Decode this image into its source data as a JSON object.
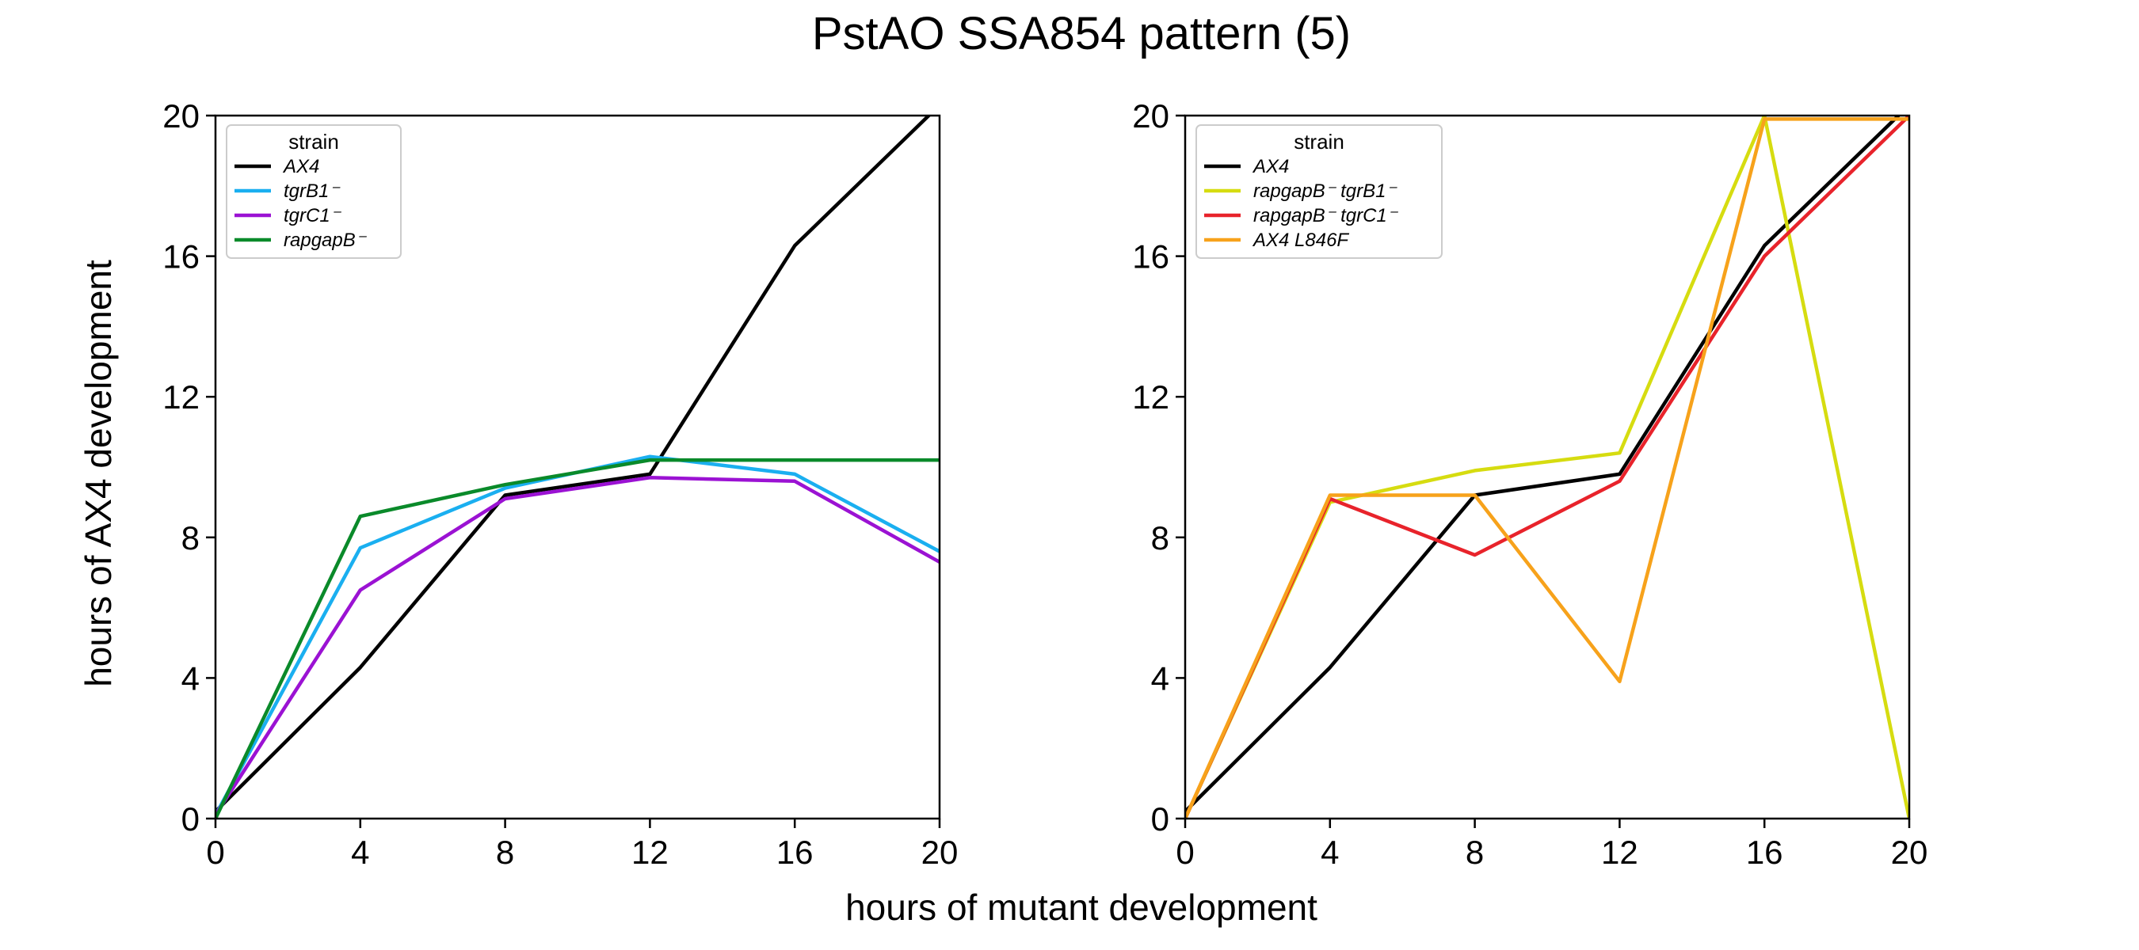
{
  "figure": {
    "title": "PstAO SSA854 pattern (5)",
    "xlabel": "hours of mutant development",
    "ylabel": "hours of AX4 development"
  },
  "chart_data": [
    {
      "type": "line",
      "xlim": [
        0,
        20
      ],
      "ylim": [
        0,
        20
      ],
      "xticks": [
        "0",
        "4",
        "8",
        "12",
        "16",
        "20"
      ],
      "yticks": [
        "0",
        "4",
        "8",
        "12",
        "16",
        "20"
      ],
      "grid": false,
      "legend": {
        "title": "strain",
        "placement": "top-left"
      },
      "series": [
        {
          "name": "AX4",
          "color": "#000000",
          "x": [
            0,
            4,
            8,
            12,
            16,
            20
          ],
          "y": [
            0.2,
            4.3,
            9.2,
            9.8,
            16.3,
            20.3
          ]
        },
        {
          "name": "tgrB1⁻",
          "color": "#1aaff0",
          "x": [
            0,
            4,
            8,
            12,
            16,
            20
          ],
          "y": [
            0.1,
            7.7,
            9.4,
            10.3,
            9.8,
            7.6
          ]
        },
        {
          "name": "tgrC1⁻",
          "color": "#9b12d3",
          "x": [
            0,
            4,
            8,
            12,
            16,
            20
          ],
          "y": [
            0.1,
            6.5,
            9.1,
            9.7,
            9.6,
            7.3
          ]
        },
        {
          "name": "rapgapB⁻",
          "color": "#0a8a2a",
          "x": [
            0,
            4,
            8,
            12,
            16,
            20
          ],
          "y": [
            0.0,
            8.6,
            9.5,
            10.2,
            10.2,
            10.2
          ]
        }
      ]
    },
    {
      "type": "line",
      "xlim": [
        0,
        20
      ],
      "ylim": [
        0,
        20
      ],
      "xticks": [
        "0",
        "4",
        "8",
        "12",
        "16",
        "20"
      ],
      "yticks": [
        "0",
        "4",
        "8",
        "12",
        "16",
        "20"
      ],
      "grid": false,
      "legend": {
        "title": "strain",
        "placement": "top-left"
      },
      "series": [
        {
          "name": "AX4",
          "color": "#000000",
          "x": [
            0,
            4,
            8,
            12,
            16,
            20
          ],
          "y": [
            0.2,
            4.3,
            9.2,
            9.8,
            16.3,
            20.3
          ]
        },
        {
          "name": "rapgapB⁻ tgrB1⁻",
          "color": "#d6dc10",
          "x": [
            0,
            4,
            8,
            12,
            16,
            20
          ],
          "y": [
            0.0,
            9.0,
            9.9,
            10.4,
            20.0,
            0.0
          ]
        },
        {
          "name": "rapgapB⁻ tgrC1⁻",
          "color": "#e8232b",
          "x": [
            0,
            4,
            8,
            12,
            16,
            20
          ],
          "y": [
            0.0,
            9.1,
            7.5,
            9.6,
            16.0,
            20.0
          ]
        },
        {
          "name": "AX4 L846F",
          "color": "#f7a21b",
          "x": [
            0,
            4,
            8,
            12,
            16,
            20
          ],
          "y": [
            0.0,
            9.2,
            9.2,
            3.9,
            19.9,
            19.9
          ]
        }
      ]
    }
  ]
}
